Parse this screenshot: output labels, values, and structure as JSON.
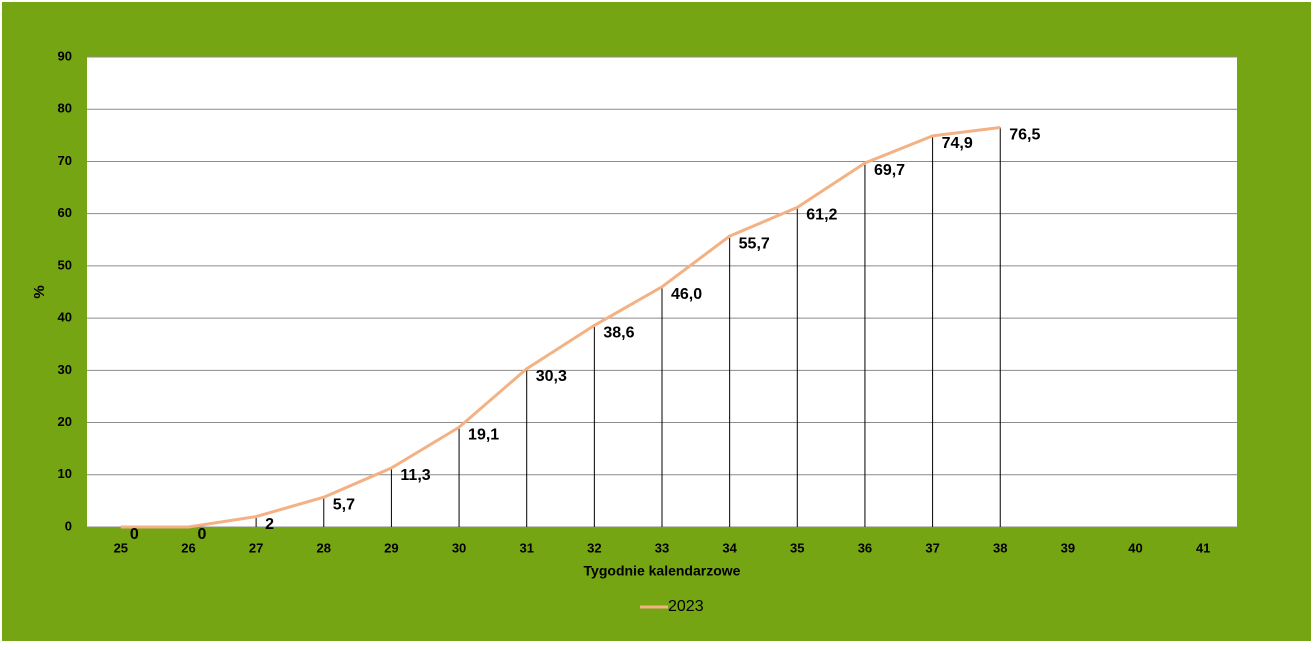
{
  "chart_data": {
    "type": "line",
    "x_label": "Tygodnie kalendarzowe",
    "y_label": "%",
    "categories": [
      "25",
      "26",
      "27",
      "28",
      "29",
      "30",
      "31",
      "32",
      "33",
      "34",
      "35",
      "36",
      "37",
      "38",
      "39",
      "40",
      "41"
    ],
    "series": [
      {
        "name": "2023",
        "color": "#f4b183",
        "values": [
          0,
          0,
          2,
          5.7,
          11.3,
          19.1,
          30.3,
          38.6,
          46.0,
          55.7,
          61.2,
          69.7,
          74.9,
          76.5,
          null,
          null,
          null
        ],
        "value_labels": [
          "0",
          "0",
          "2",
          "5,7",
          "11,3",
          "19,1",
          "30,3",
          "38,6",
          "46,0",
          "55,7",
          "61,2",
          "69,7",
          "74,9",
          "76,5",
          null,
          null,
          null
        ]
      }
    ],
    "ylim": [
      0,
      90
    ],
    "yticks": [
      0,
      10,
      20,
      30,
      40,
      50,
      60,
      70,
      80,
      90
    ],
    "grid": true,
    "drop_lines": true,
    "legend": "bottom"
  }
}
